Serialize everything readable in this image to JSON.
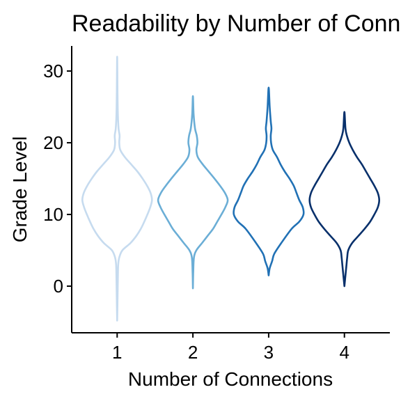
{
  "chart_data": {
    "type": "violin",
    "title": "Readability by Number of Connections",
    "xlabel": "Number of Connections",
    "ylabel": "Grade Level",
    "categories": [
      "1",
      "2",
      "3",
      "4"
    ],
    "ylim": [
      -6.5,
      33.5
    ],
    "yticks": [
      0,
      10,
      20,
      30
    ],
    "grid": false,
    "legend": "none",
    "series": [
      {
        "category": "1",
        "color": "#c6dbef",
        "range": [
          -4.8,
          32.0
        ],
        "profile": [
          [
            -4.8,
            0.0
          ],
          [
            -2,
            0.01
          ],
          [
            1,
            0.02
          ],
          [
            3,
            0.03
          ],
          [
            4,
            0.06
          ],
          [
            5,
            0.15
          ],
          [
            6,
            0.38
          ],
          [
            7,
            0.55
          ],
          [
            8,
            0.68
          ],
          [
            9,
            0.78
          ],
          [
            10,
            0.87
          ],
          [
            11,
            0.95
          ],
          [
            12,
            1.0
          ],
          [
            13,
            0.96
          ],
          [
            14,
            0.86
          ],
          [
            15,
            0.73
          ],
          [
            16,
            0.58
          ],
          [
            17,
            0.4
          ],
          [
            18,
            0.22
          ],
          [
            19,
            0.09
          ],
          [
            20,
            0.06
          ],
          [
            21,
            0.07
          ],
          [
            22,
            0.04
          ],
          [
            24,
            0.02
          ],
          [
            27,
            0.01
          ],
          [
            30,
            0.005
          ],
          [
            32,
            0.0
          ]
        ]
      },
      {
        "category": "2",
        "color": "#6baed6",
        "range": [
          -0.3,
          26.5
        ],
        "profile": [
          [
            -0.3,
            0.0
          ],
          [
            2,
            0.01
          ],
          [
            4,
            0.03
          ],
          [
            5,
            0.1
          ],
          [
            6,
            0.26
          ],
          [
            7,
            0.42
          ],
          [
            8,
            0.58
          ],
          [
            9,
            0.7
          ],
          [
            10,
            0.82
          ],
          [
            11,
            0.93
          ],
          [
            12,
            1.0
          ],
          [
            13,
            0.92
          ],
          [
            14,
            0.78
          ],
          [
            15,
            0.62
          ],
          [
            16,
            0.45
          ],
          [
            17,
            0.28
          ],
          [
            18,
            0.14
          ],
          [
            19,
            0.1
          ],
          [
            20,
            0.13
          ],
          [
            21,
            0.11
          ],
          [
            22,
            0.06
          ],
          [
            24,
            0.02
          ],
          [
            26.5,
            0.0
          ]
        ]
      },
      {
        "category": "3",
        "color": "#2171b5",
        "range": [
          1.5,
          27.7
        ],
        "profile": [
          [
            1.5,
            0.0
          ],
          [
            2.5,
            0.03
          ],
          [
            3.5,
            0.1
          ],
          [
            4.5,
            0.16
          ],
          [
            6,
            0.36
          ],
          [
            8,
            0.66
          ],
          [
            9,
            0.88
          ],
          [
            10,
            1.0
          ],
          [
            11,
            0.98
          ],
          [
            12,
            0.88
          ],
          [
            13,
            0.8
          ],
          [
            14,
            0.72
          ],
          [
            15,
            0.6
          ],
          [
            16,
            0.46
          ],
          [
            17,
            0.34
          ],
          [
            18,
            0.24
          ],
          [
            19,
            0.12
          ],
          [
            20,
            0.07
          ],
          [
            21,
            0.06
          ],
          [
            22,
            0.08
          ],
          [
            23,
            0.06
          ],
          [
            25,
            0.03
          ],
          [
            27.7,
            0.0
          ]
        ]
      },
      {
        "category": "4",
        "color": "#08306b",
        "range": [
          0.0,
          24.3
        ],
        "profile": [
          [
            0,
            0.0
          ],
          [
            2,
            0.04
          ],
          [
            3,
            0.06
          ],
          [
            4,
            0.08
          ],
          [
            5,
            0.11
          ],
          [
            6,
            0.22
          ],
          [
            7,
            0.4
          ],
          [
            8,
            0.58
          ],
          [
            9,
            0.74
          ],
          [
            10,
            0.86
          ],
          [
            11,
            0.96
          ],
          [
            12,
            1.0
          ],
          [
            13,
            0.96
          ],
          [
            14,
            0.86
          ],
          [
            15,
            0.74
          ],
          [
            16,
            0.62
          ],
          [
            17,
            0.5
          ],
          [
            18,
            0.36
          ],
          [
            19,
            0.24
          ],
          [
            20,
            0.14
          ],
          [
            21,
            0.07
          ],
          [
            22,
            0.03
          ],
          [
            24.3,
            0.0
          ]
        ]
      }
    ]
  }
}
